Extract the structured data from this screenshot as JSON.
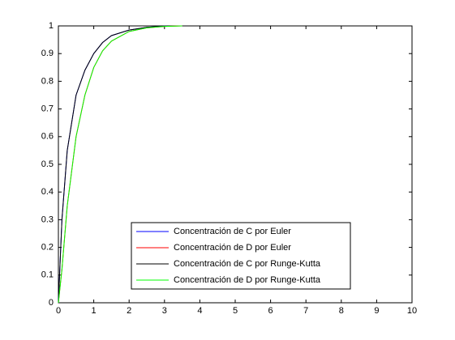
{
  "chart_data": {
    "type": "line",
    "series": [
      {
        "name": "Concentración de C por Euler",
        "color": "#0000ff",
        "x": [
          0,
          0.1,
          0.25,
          0.5,
          0.75,
          1,
          1.25,
          1.5,
          2,
          2.5,
          3.1
        ],
        "values": [
          0,
          0.3,
          0.55,
          0.75,
          0.84,
          0.9,
          0.94,
          0.965,
          0.985,
          0.995,
          1
        ]
      },
      {
        "name": "Concentración de D por Euler",
        "color": "#ff0000",
        "x": [
          0,
          0.1,
          0.25,
          0.5,
          0.75,
          1,
          1.25,
          1.5,
          2,
          2.5,
          3,
          3.5
        ],
        "values": [
          0,
          0.12,
          0.35,
          0.6,
          0.75,
          0.85,
          0.91,
          0.945,
          0.98,
          0.993,
          0.998,
          1
        ]
      },
      {
        "name": "Concentración de C por Runge-Kutta",
        "color": "#000000",
        "x": [
          0,
          0.1,
          0.25,
          0.5,
          0.75,
          1,
          1.25,
          1.5,
          2,
          2.5,
          3.1
        ],
        "values": [
          0,
          0.3,
          0.55,
          0.75,
          0.84,
          0.9,
          0.94,
          0.965,
          0.985,
          0.995,
          1
        ]
      },
      {
        "name": "Concentración de D por Runge-Kutta",
        "color": "#00ff00",
        "x": [
          0,
          0.1,
          0.25,
          0.5,
          0.75,
          1,
          1.25,
          1.5,
          2,
          2.5,
          3,
          3.5
        ],
        "values": [
          0,
          0.12,
          0.35,
          0.6,
          0.75,
          0.85,
          0.91,
          0.945,
          0.98,
          0.993,
          0.998,
          1
        ]
      }
    ],
    "xlim": [
      0,
      10
    ],
    "xticks": [
      0,
      1,
      2,
      3,
      4,
      5,
      6,
      7,
      8,
      9,
      10
    ],
    "ylim": [
      0,
      1
    ],
    "yticks": [
      0,
      0.1,
      0.2,
      0.3,
      0.4,
      0.5,
      0.6,
      0.7,
      0.8,
      0.9,
      1
    ],
    "legend": "south"
  }
}
